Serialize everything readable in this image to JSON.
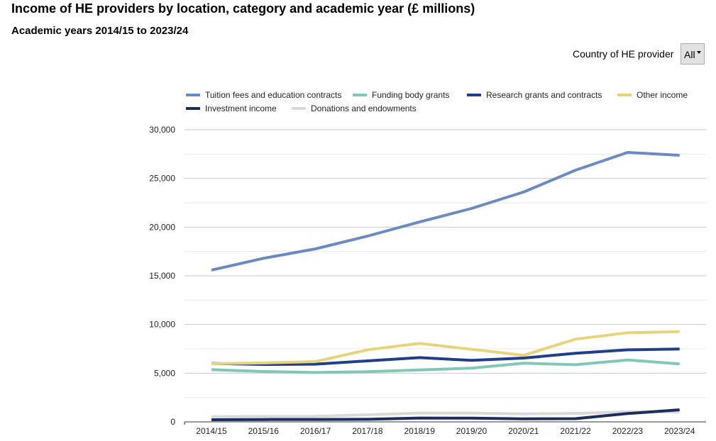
{
  "header": {
    "title": "Income of HE providers by location, category and academic year (£ millions)",
    "subtitle": "Academic years 2014/15 to 2023/24"
  },
  "filter": {
    "label": "Country of HE provider",
    "selected": "All"
  },
  "chart_data": {
    "type": "line",
    "title": "",
    "xlabel": "",
    "ylabel": "",
    "ylim": [
      0,
      30000
    ],
    "yticks": [
      0,
      5000,
      10000,
      15000,
      20000,
      25000,
      30000
    ],
    "ytick_labels": [
      "0",
      "5,000",
      "10,000",
      "15,000",
      "20,000",
      "25,000",
      "30,000"
    ],
    "grid": true,
    "legend_position": "top",
    "categories": [
      "2014/15",
      "2015/16",
      "2016/17",
      "2017/18",
      "2018/19",
      "2019/20",
      "2020/21",
      "2021/22",
      "2022/23",
      "2023/24"
    ],
    "series": [
      {
        "name": "Tuition fees and education contracts",
        "color": "#6b8bc0",
        "values": [
          15580,
          16800,
          17770,
          19080,
          20530,
          21920,
          23600,
          25850,
          27670,
          27380
        ]
      },
      {
        "name": "Funding body grants",
        "color": "#7fc8b8",
        "values": [
          5360,
          5170,
          5070,
          5150,
          5340,
          5510,
          6020,
          5870,
          6360,
          5950
        ]
      },
      {
        "name": "Research grants and contracts",
        "color": "#1f3f8a",
        "values": [
          6000,
          5900,
          5930,
          6260,
          6600,
          6310,
          6550,
          7040,
          7400,
          7480
        ]
      },
      {
        "name": "Other income",
        "color": "#e6d47a",
        "values": [
          5970,
          6050,
          6190,
          7400,
          8060,
          7450,
          6840,
          8500,
          9150,
          9270
        ]
      },
      {
        "name": "Investment income",
        "color": "#1b2d5c",
        "values": [
          220,
          240,
          250,
          260,
          390,
          380,
          310,
          330,
          850,
          1240
        ]
      },
      {
        "name": "Donations and endowments",
        "color": "#d9d9d9",
        "values": [
          530,
          550,
          560,
          730,
          900,
          900,
          820,
          870,
          1040,
          1020
        ]
      }
    ]
  }
}
